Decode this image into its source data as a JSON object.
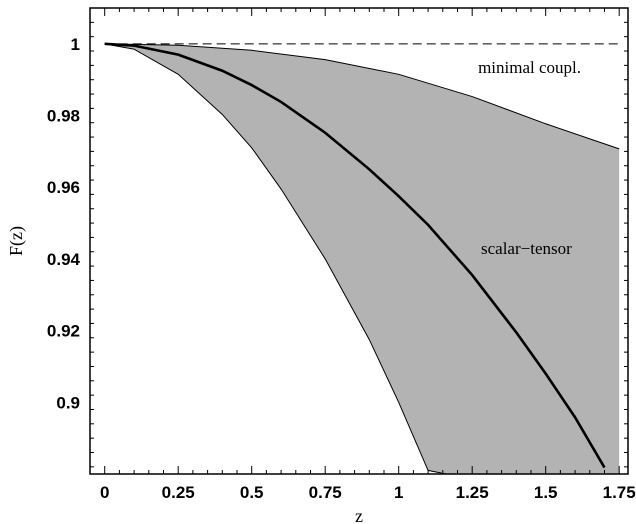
{
  "chart_data": {
    "type": "area",
    "title": "",
    "xlabel": "z",
    "ylabel": "F(z)",
    "xlim": [
      -0.05,
      1.78
    ],
    "ylim": [
      0.88,
      1.01
    ],
    "x_ticks": [
      0,
      0.25,
      0.5,
      0.75,
      1,
      1.25,
      1.5,
      1.75
    ],
    "x_tick_labels": [
      "0",
      "0.25",
      "0.5",
      "0.75",
      "1",
      "1.25",
      "1.5",
      "1.75"
    ],
    "y_ticks": [
      0.9,
      0.92,
      0.94,
      0.96,
      0.98,
      1
    ],
    "y_tick_labels": [
      "0.9",
      "0.92",
      "0.94",
      "0.96",
      "0.98",
      "1"
    ],
    "grid": false,
    "band_fill_color": "#b3b3b3",
    "band_upper": {
      "x": [
        0,
        0.25,
        0.5,
        0.75,
        1,
        1.25,
        1.5,
        1.75
      ],
      "y": [
        1.0,
        0.9996,
        0.9982,
        0.9956,
        0.9915,
        0.9853,
        0.9777,
        0.9707
      ]
    },
    "band_lower": {
      "x": [
        0,
        0.1,
        0.25,
        0.4,
        0.5,
        0.6,
        0.75,
        0.9,
        1.0,
        1.1,
        1.21
      ],
      "y": [
        1.0,
        0.9985,
        0.9915,
        0.9803,
        0.971,
        0.9595,
        0.94,
        0.9175,
        0.9,
        0.881,
        0.8792
      ]
    },
    "series": [
      {
        "x": [
          0,
          0.1,
          0.25,
          0.4,
          0.5,
          0.6,
          0.75,
          0.9,
          1.0,
          1.1,
          1.25,
          1.4,
          1.5,
          1.6,
          1.7
        ],
        "y": [
          1.0,
          0.9995,
          0.997,
          0.9925,
          0.9885,
          0.9838,
          0.9752,
          0.965,
          0.9575,
          0.9495,
          0.9355,
          0.9195,
          0.908,
          0.8958,
          0.8818
        ]
      },
      {
        "x": [
          0,
          1.75
        ],
        "y": [
          1.0,
          1.0
        ]
      }
    ],
    "annotations": [
      {
        "text": "minimal coupl.",
        "x": 1.27,
        "y": 0.9935
      },
      {
        "text": "scalar−tensor",
        "x": 1.28,
        "y": 0.943
      }
    ]
  }
}
